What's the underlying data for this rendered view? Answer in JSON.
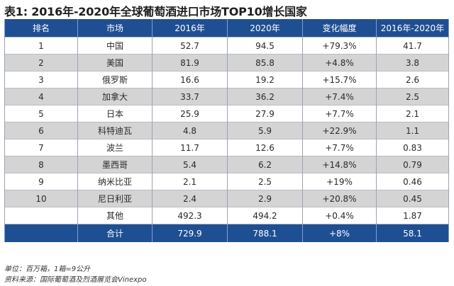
{
  "title": "表1: 2016年-2020年全球葡萄酒进口市场TOP10增长国家",
  "table": {
    "headers": [
      "排名",
      "市场",
      "2016年",
      "2020年",
      "变化幅度",
      "2016年-2020年"
    ],
    "rows": [
      [
        "1",
        "中国",
        "52.7",
        "94.5",
        "+79.3%",
        "41.7"
      ],
      [
        "2",
        "美国",
        "81.9",
        "85.8",
        "+4.8%",
        "3.8"
      ],
      [
        "3",
        "俄罗斯",
        "16.6",
        "19.2",
        "+15.7%",
        "2.6"
      ],
      [
        "4",
        "加拿大",
        "33.7",
        "36.2",
        "+7.4%",
        "2.5"
      ],
      [
        "5",
        "日本",
        "25.9",
        "27.9",
        "+7.7%",
        "2.1"
      ],
      [
        "6",
        "科特迪瓦",
        "4.8",
        "5.9",
        "+22.9%",
        "1.1"
      ],
      [
        "7",
        "波兰",
        "11.7",
        "12.6",
        "+7.7%",
        "0.83"
      ],
      [
        "8",
        "墨西哥",
        "5.4",
        "6.2",
        "+14.8%",
        "0.79"
      ],
      [
        "9",
        "纳米比亚",
        "2.1",
        "2.5",
        "+19%",
        "0.46"
      ],
      [
        "10",
        "尼日利亚",
        "2.4",
        "2.9",
        "+20.8%",
        "0.45"
      ],
      [
        "",
        "其他",
        "492.3",
        "494.2",
        "+0.4%",
        "1.87"
      ]
    ],
    "total": [
      "",
      "合计",
      "729.9",
      "788.1",
      "+8%",
      "58.1"
    ]
  },
  "footnotes": {
    "unit": "单位：百万箱，1箱=9公升",
    "source": "资料来源：国际葡萄酒及烈酒展览会Vinexpo"
  },
  "colors": {
    "header_bg": "#1f4f93",
    "header_text": "#ffffff",
    "stripe": "#d4d4d4"
  }
}
